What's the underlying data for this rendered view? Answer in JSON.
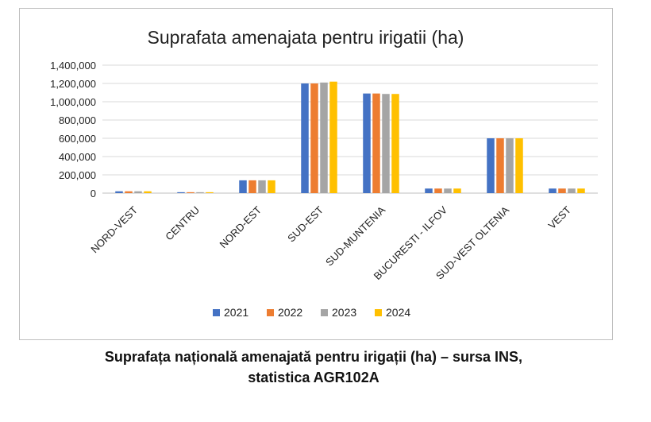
{
  "chart_data": {
    "type": "bar",
    "title": "Suprafata amenajata pentru irigatii (ha)",
    "xlabel": "",
    "ylabel": "",
    "ylim": [
      0,
      1400000
    ],
    "yticks": [
      0,
      200000,
      400000,
      600000,
      800000,
      1000000,
      1200000,
      1400000
    ],
    "ytick_labels": [
      "0",
      "200,000",
      "400,000",
      "600,000",
      "800,000",
      "1,000,000",
      "1,200,000",
      "1,400,000"
    ],
    "categories": [
      "NORD-VEST",
      "CENTRU",
      "NORD-EST",
      "SUD-EST",
      "SUD-MUNTENIA",
      "BUCURESTI - ILFOV",
      "SUD-VEST OLTENIA",
      "VEST"
    ],
    "series": [
      {
        "name": "2021",
        "color": "#4472c4",
        "values": [
          20000,
          10000,
          140000,
          1200000,
          1090000,
          50000,
          600000,
          50000
        ]
      },
      {
        "name": "2022",
        "color": "#ed7d31",
        "values": [
          20000,
          10000,
          140000,
          1200000,
          1090000,
          50000,
          600000,
          50000
        ]
      },
      {
        "name": "2023",
        "color": "#a5a5a5",
        "values": [
          20000,
          10000,
          140000,
          1210000,
          1085000,
          50000,
          600000,
          50000
        ]
      },
      {
        "name": "2024",
        "color": "#ffc000",
        "values": [
          20000,
          10000,
          140000,
          1220000,
          1085000,
          50000,
          600000,
          50000
        ]
      }
    ],
    "grid": true,
    "legend_position": "bottom"
  },
  "caption": {
    "line1": "Suprafața națională amenajată pentru irigații (ha) – sursa INS,",
    "line2": "statistica AGR102A"
  }
}
